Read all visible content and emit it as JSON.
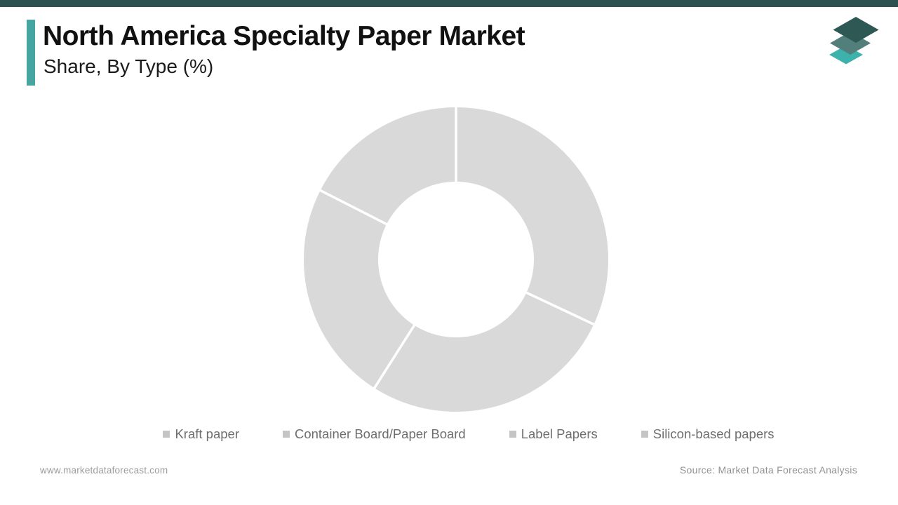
{
  "top_bar_color": "#2d5050",
  "header": {
    "title": "North America Specialty Paper Market",
    "subtitle": "Share, By Type (%)",
    "accent_color": "#45a5a1"
  },
  "logo": {
    "name": "market-data-forecast-logo",
    "layer_colors": {
      "top": "#2d5853",
      "middle": "#527f7b",
      "bottom": "#3db1ac"
    }
  },
  "chart_data": {
    "type": "pie",
    "variant": "donut",
    "title": "North America Specialty Paper Market Share, By Type (%)",
    "categories": [
      "Kraft paper",
      "Container Board/Paper Board",
      "Label Papers",
      "Silicon-based papers"
    ],
    "values": [
      32,
      27,
      23.5,
      17.5
    ],
    "unit": "%",
    "start_angle_deg": 0,
    "clockwise": true,
    "inner_radius_ratio": 0.51,
    "segment_color": "#d9d9d9",
    "divider_color": "#ffffff",
    "data_labels": "none",
    "legend_position": "bottom",
    "note": "All slices are rendered in uniform placeholder gray; values are estimated from slice angles."
  },
  "legend": {
    "marker_color": "#c5c5c5",
    "text_color": "#6e6e6e"
  },
  "footer": {
    "website": "www.marketdataforecast.com",
    "source": "Source: Market Data Forecast Analysis"
  }
}
